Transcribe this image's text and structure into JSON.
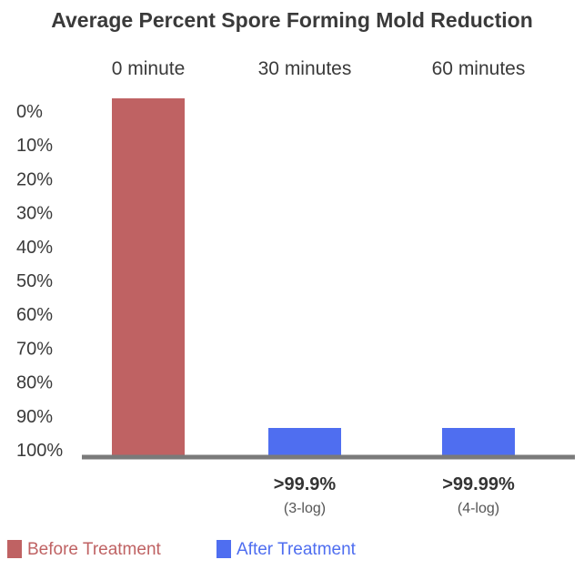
{
  "chart_data": {
    "type": "bar",
    "title": "Average Percent Spore Forming Mold Reduction",
    "categories": [
      "0 minute",
      "30 minutes",
      "60 minutes"
    ],
    "y_ticks": [
      "0%",
      "10%",
      "20%",
      "30%",
      "40%",
      "50%",
      "60%",
      "70%",
      "80%",
      "90%",
      "100%"
    ],
    "ylim": [
      0,
      100
    ],
    "y_inverted": true,
    "series": [
      {
        "name": "Before Treatment",
        "color": "#bf6263",
        "values": [
          0,
          null,
          null
        ]
      },
      {
        "name": "After Treatment",
        "color": "#4f6ef0",
        "values": [
          null,
          99.9,
          99.99
        ]
      }
    ],
    "annotations": [
      null,
      {
        "main": ">99.9%",
        "sub": "(3-log)"
      },
      {
        "main": ">99.99%",
        "sub": "(4-log)"
      }
    ],
    "grid": false,
    "legend": "bottom-left"
  }
}
